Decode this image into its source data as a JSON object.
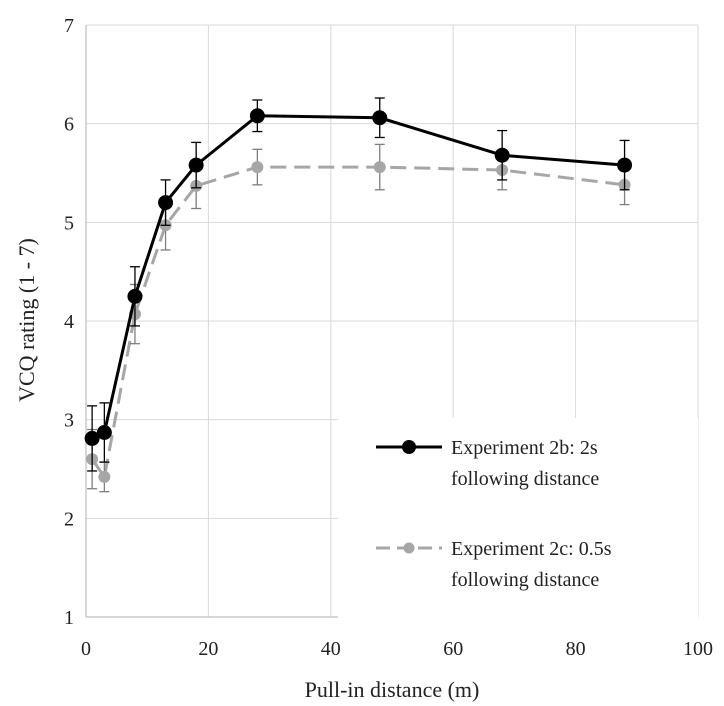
{
  "chart_data": {
    "type": "line",
    "title": "",
    "xlabel": "Pull-in distance (m)",
    "ylabel": "VCQ rating (1 - 7)",
    "xlim": [
      0,
      100
    ],
    "ylim": [
      1,
      7
    ],
    "xticks": [
      "0",
      "20",
      "40",
      "60",
      "80",
      "100"
    ],
    "yticks": [
      "1",
      "2",
      "3",
      "4",
      "5",
      "6",
      "7"
    ],
    "grid": true,
    "legend_position": "bottom-right",
    "series": [
      {
        "name_line1": "Experiment 2b: 2s",
        "name_line2": "following distance",
        "color": "#000000",
        "line_style": "solid",
        "x": [
          1,
          3,
          8,
          13,
          18,
          28,
          48,
          68,
          88
        ],
        "y": [
          2.81,
          2.87,
          4.25,
          5.2,
          5.58,
          6.08,
          6.06,
          5.68,
          5.58
        ],
        "err": [
          0.33,
          0.3,
          0.3,
          0.23,
          0.23,
          0.16,
          0.2,
          0.25,
          0.25
        ]
      },
      {
        "name_line1": "Experiment 2c: 0.5s",
        "name_line2": "following distance",
        "color": "#a6a6a6",
        "line_style": "dashed",
        "x": [
          1,
          3,
          8,
          13,
          18,
          28,
          48,
          68,
          88
        ],
        "y": [
          2.6,
          2.42,
          4.07,
          4.97,
          5.37,
          5.56,
          5.56,
          5.53,
          5.38
        ],
        "err": [
          0.3,
          0.15,
          0.3,
          0.25,
          0.23,
          0.18,
          0.23,
          0.2,
          0.2
        ]
      }
    ]
  }
}
